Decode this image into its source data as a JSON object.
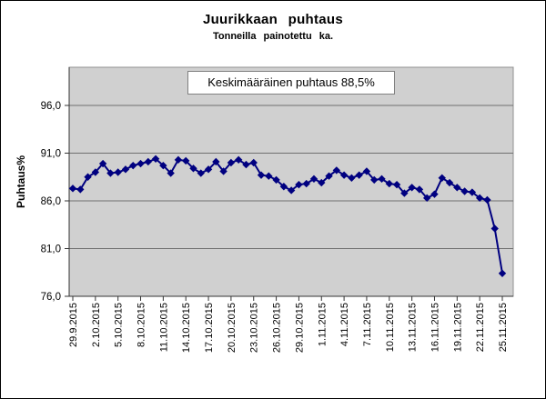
{
  "chart": {
    "title": "Juurikkaan puhtaus",
    "subtitle": "Tonneilla painotettu ka.",
    "annotation": "Keskimääräinen puhtaus 88,5%",
    "y_axis_title": "Puhtaus%"
  },
  "chart_data": {
    "type": "line",
    "title": "Juurikkaan puhtaus",
    "subtitle": "Tonneilla painotettu ka.",
    "annotation": "Keskimääräinen puhtaus 88,5%",
    "ylabel": "Puhtaus%",
    "ylim": [
      76,
      100
    ],
    "yticks": [
      96.0,
      91.0,
      86.0,
      81.0,
      76.0
    ],
    "ytick_labels": [
      "96,0",
      "91,0",
      "86,0",
      "81,0",
      "76,0"
    ],
    "x_label_every": 3,
    "grid": true,
    "legend": "none",
    "marker": "diamond",
    "series_color": "#000080",
    "plot_bg_color": "#d0d0d0",
    "gridline_color": "#707070",
    "categories": [
      "29.9.2015",
      "30.9.2015",
      "1.10.2015",
      "2.10.2015",
      "3.10.2015",
      "4.10.2015",
      "5.10.2015",
      "6.10.2015",
      "7.10.2015",
      "8.10.2015",
      "9.10.2015",
      "10.10.2015",
      "11.10.2015",
      "12.10.2015",
      "13.10.2015",
      "14.10.2015",
      "15.10.2015",
      "16.10.2015",
      "17.10.2015",
      "18.10.2015",
      "19.10.2015",
      "20.10.2015",
      "21.10.2015",
      "22.10.2015",
      "23.10.2015",
      "24.10.2015",
      "25.10.2015",
      "26.10.2015",
      "27.10.2015",
      "28.10.2015",
      "29.10.2015",
      "30.10.2015",
      "31.10.2015",
      "1.11.2015",
      "2.11.2015",
      "3.11.2015",
      "4.11.2015",
      "5.11.2015",
      "6.11.2015",
      "7.11.2015",
      "8.11.2015",
      "9.11.2015",
      "10.11.2015",
      "11.11.2015",
      "12.11.2015",
      "13.11.2015",
      "14.11.2015",
      "15.11.2015",
      "16.11.2015",
      "17.11.2015",
      "18.11.2015",
      "19.11.2015",
      "20.11.2015",
      "21.11.2015",
      "22.11.2015",
      "23.11.2015",
      "24.11.2015",
      "25.11.2015"
    ],
    "series": [
      {
        "name": "Puhtaus%",
        "values": [
          87.3,
          87.2,
          88.5,
          89.0,
          89.9,
          88.9,
          89.0,
          89.3,
          89.7,
          89.9,
          90.1,
          90.4,
          89.7,
          88.9,
          90.3,
          90.2,
          89.4,
          88.9,
          89.3,
          90.1,
          89.1,
          90.0,
          90.3,
          89.8,
          90.0,
          88.7,
          88.6,
          88.2,
          87.5,
          87.1,
          87.7,
          87.8,
          88.3,
          87.9,
          88.6,
          89.2,
          88.7,
          88.4,
          88.7,
          89.1,
          88.2,
          88.3,
          87.8,
          87.7,
          86.8,
          87.4,
          87.2,
          86.3,
          86.7,
          88.4,
          87.9,
          87.4,
          87.0,
          86.9,
          86.3,
          86.1,
          83.1,
          78.4
        ]
      }
    ]
  }
}
